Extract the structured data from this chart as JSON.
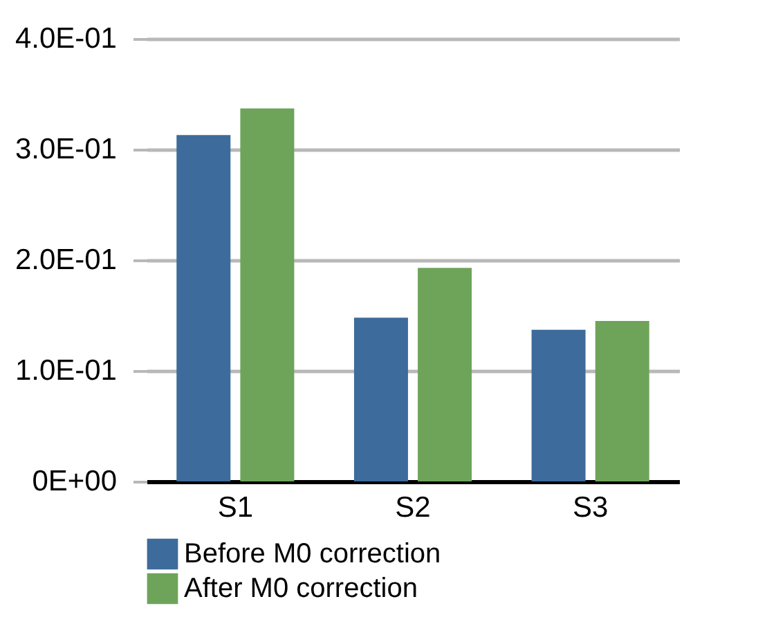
{
  "chart_data": {
    "type": "bar",
    "categories": [
      "S1",
      "S2",
      "S3"
    ],
    "series": [
      {
        "name": "Before M0 correction",
        "color": "#3d6b9b",
        "values": [
          0.313,
          0.148,
          0.137
        ]
      },
      {
        "name": "After M0 correction",
        "color": "#6ea45a",
        "values": [
          0.337,
          0.193,
          0.145
        ]
      }
    ],
    "ylim": [
      0,
      0.4
    ],
    "yticks": [
      {
        "value": 0,
        "label": "0E+00"
      },
      {
        "value": 0.1,
        "label": "1.0E-01"
      },
      {
        "value": 0.2,
        "label": "2.0E-01"
      },
      {
        "value": 0.3,
        "label": "3.0E-01"
      },
      {
        "value": 0.4,
        "label": "4.0E-01"
      }
    ],
    "grid": "y",
    "legend": "bottom"
  }
}
